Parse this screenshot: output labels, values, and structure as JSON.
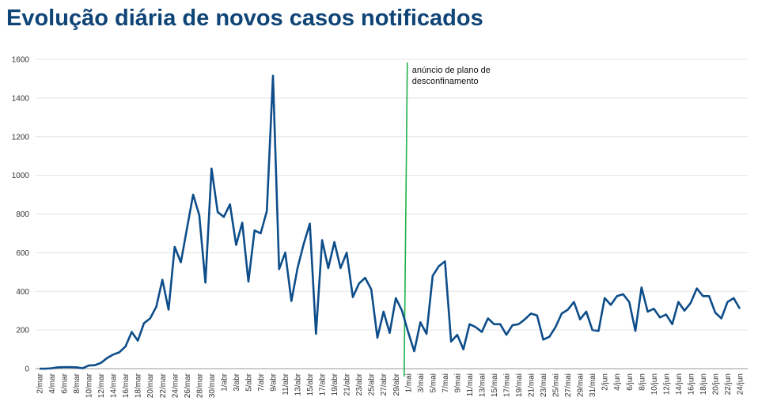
{
  "chart_data": {
    "type": "line",
    "title": "Evolução diária de novos casos notificados",
    "categories": [
      "2/mar",
      null,
      "4/mar",
      null,
      "6/mar",
      null,
      "8/mar",
      null,
      "10/mar",
      null,
      "12/mar",
      null,
      "14/mar",
      null,
      "16/mar",
      null,
      "18/mar",
      null,
      "20/mar",
      null,
      "22/mar",
      null,
      "24/mar",
      null,
      "26/mar",
      null,
      "28/mar",
      null,
      "30/mar",
      null,
      "1/abr",
      null,
      "3/abr",
      null,
      "5/abr",
      null,
      "7/abr",
      null,
      "9/abr",
      null,
      "11/abr",
      null,
      "13/abr",
      null,
      "15/abr",
      null,
      "17/abr",
      null,
      "19/abr",
      null,
      "21/abr",
      null,
      "23/abr",
      null,
      "25/abr",
      null,
      "27/abr",
      null,
      "29/abr",
      null,
      "1/mai",
      null,
      "3/mai",
      null,
      "5/mai",
      null,
      "7/mai",
      null,
      "9/mai",
      null,
      "11/mai",
      null,
      "13/mai",
      null,
      "15/mai",
      null,
      "17/mai",
      null,
      "19/mai",
      null,
      "21/mai",
      null,
      "23/mai",
      null,
      "25/mai",
      null,
      "27/mai",
      null,
      "29/mai",
      null,
      "31/mai",
      null,
      "2/jun",
      null,
      "4/jun",
      null,
      "6/jun",
      null,
      "8/jun",
      null,
      "10/jun",
      null,
      "12/jun",
      null,
      "14/jun",
      null,
      "16/jun",
      null,
      "18/jun",
      null,
      "20/jun",
      null,
      "22/jun",
      null,
      "24/jun"
    ],
    "series": [
      {
        "name": "novos casos",
        "color": "#0d4d8a",
        "values": [
          0,
          0,
          2,
          7,
          8,
          8,
          7,
          2,
          16,
          18,
          30,
          55,
          73,
          85,
          115,
          190,
          145,
          235,
          260,
          320,
          460,
          305,
          630,
          550,
          725,
          900,
          795,
          445,
          1035,
          810,
          785,
          850,
          640,
          755,
          450,
          715,
          700,
          815,
          1515,
          515,
          600,
          350,
          520,
          645,
          750,
          180,
          665,
          520,
          655,
          520,
          600,
          370,
          440,
          470,
          410,
          160,
          295,
          185,
          365,
          300,
          190,
          90,
          240,
          180,
          480,
          530,
          555,
          140,
          175,
          100,
          230,
          215,
          190,
          260,
          230,
          230,
          175,
          225,
          230,
          255,
          285,
          275,
          150,
          165,
          215,
          285,
          305,
          345,
          255,
          295,
          200,
          195,
          365,
          330,
          375,
          385,
          345,
          195,
          420,
          295,
          310,
          265,
          280,
          230,
          345,
          300,
          340,
          415,
          375,
          375,
          290,
          260,
          345,
          365,
          310
        ]
      }
    ],
    "ylim": [
      0,
      1600
    ],
    "yticks": [
      0,
      200,
      400,
      600,
      800,
      1000,
      1200,
      1400,
      1600
    ],
    "grid": true,
    "annotation": {
      "x": "1/mai",
      "color": "#1fb24a",
      "lines": [
        "anúncio de plano de",
        "desconfinamento"
      ]
    }
  }
}
